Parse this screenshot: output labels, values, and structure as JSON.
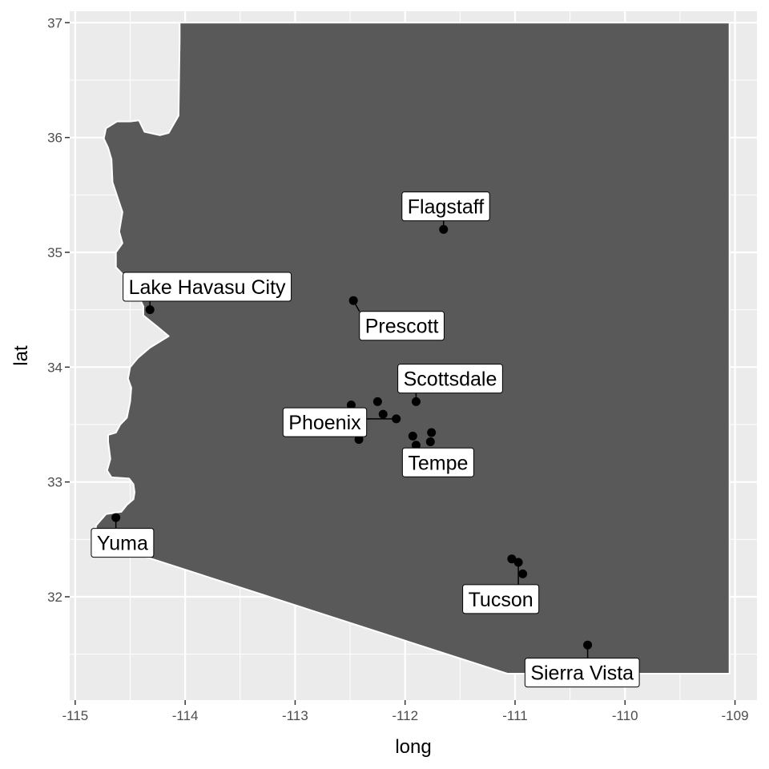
{
  "chart_data": {
    "type": "scatter",
    "title": "",
    "xlabel": "long",
    "ylabel": "lat",
    "xlim": [
      -115.05,
      -108.8
    ],
    "ylim": [
      31.1,
      37.1
    ],
    "x_ticks": [
      "-115",
      "-114",
      "-113",
      "-112",
      "-111",
      "-110",
      "-109"
    ],
    "y_ticks": [
      "32",
      "33",
      "34",
      "35",
      "36",
      "37"
    ],
    "grid": true,
    "legend": "none",
    "colors": {
      "panel": "#ebebeb",
      "grid": "#ffffff",
      "state_fill": "#595959",
      "state_border": "#ffffff",
      "point": "#000000",
      "label_fill": "#ffffff",
      "label_border": "#000000"
    },
    "state_outline": [
      [
        -114.05,
        37.0
      ],
      [
        -109.05,
        37.0
      ],
      [
        -109.05,
        31.33
      ],
      [
        -110.0,
        31.33
      ],
      [
        -111.07,
        31.33
      ],
      [
        -114.82,
        32.49
      ],
      [
        -114.81,
        32.62
      ],
      [
        -114.72,
        32.72
      ],
      [
        -114.58,
        32.74
      ],
      [
        -114.53,
        32.8
      ],
      [
        -114.47,
        32.85
      ],
      [
        -114.46,
        32.91
      ],
      [
        -114.47,
        32.98
      ],
      [
        -114.51,
        33.03
      ],
      [
        -114.67,
        33.04
      ],
      [
        -114.71,
        33.1
      ],
      [
        -114.68,
        33.2
      ],
      [
        -114.7,
        33.35
      ],
      [
        -114.7,
        33.41
      ],
      [
        -114.63,
        33.43
      ],
      [
        -114.59,
        33.5
      ],
      [
        -114.53,
        33.56
      ],
      [
        -114.5,
        33.7
      ],
      [
        -114.49,
        33.82
      ],
      [
        -114.52,
        33.9
      ],
      [
        -114.5,
        34.0
      ],
      [
        -114.43,
        34.08
      ],
      [
        -114.32,
        34.17
      ],
      [
        -114.15,
        34.27
      ],
      [
        -114.25,
        34.35
      ],
      [
        -114.38,
        34.45
      ],
      [
        -114.38,
        34.53
      ],
      [
        -114.47,
        34.71
      ],
      [
        -114.63,
        34.87
      ],
      [
        -114.63,
        35.0
      ],
      [
        -114.57,
        35.08
      ],
      [
        -114.6,
        35.18
      ],
      [
        -114.57,
        35.35
      ],
      [
        -114.66,
        35.61
      ],
      [
        -114.67,
        35.81
      ],
      [
        -114.7,
        35.91
      ],
      [
        -114.74,
        35.99
      ],
      [
        -114.72,
        36.08
      ],
      [
        -114.62,
        36.14
      ],
      [
        -114.5,
        36.14
      ],
      [
        -114.42,
        36.15
      ],
      [
        -114.37,
        36.05
      ],
      [
        -114.23,
        36.02
      ],
      [
        -114.15,
        36.04
      ],
      [
        -114.06,
        36.19
      ],
      [
        -114.05,
        36.85
      ]
    ],
    "points": [
      {
        "name": "Flagstaff",
        "x": -111.65,
        "y": 35.2
      },
      {
        "name": "Lake Havasu City",
        "x": -114.32,
        "y": 34.5
      },
      {
        "name": "Prescott",
        "x": -112.47,
        "y": 34.58
      },
      {
        "name": "Scottsdale",
        "x": -111.9,
        "y": 33.7
      },
      {
        "name": "Phoenix",
        "x": -112.08,
        "y": 33.55
      },
      {
        "name": "",
        "x": -112.25,
        "y": 33.7
      },
      {
        "name": "",
        "x": -112.2,
        "y": 33.59
      },
      {
        "name": "",
        "x": -112.49,
        "y": 33.67
      },
      {
        "name": "",
        "x": -112.42,
        "y": 33.37
      },
      {
        "name": "",
        "x": -111.93,
        "y": 33.4
      },
      {
        "name": "Tempe",
        "x": -111.9,
        "y": 33.32
      },
      {
        "name": "",
        "x": -111.76,
        "y": 33.43
      },
      {
        "name": "",
        "x": -111.77,
        "y": 33.35
      },
      {
        "name": "Yuma",
        "x": -114.63,
        "y": 32.69
      },
      {
        "name": "",
        "x": -111.03,
        "y": 32.33
      },
      {
        "name": "Tucson",
        "x": -110.97,
        "y": 32.3
      },
      {
        "name": "",
        "x": -110.93,
        "y": 32.2
      },
      {
        "name": "Sierra Vista",
        "x": -110.34,
        "y": 31.58
      }
    ],
    "labels": [
      {
        "text": "Flagstaff",
        "x": -111.63,
        "y": 35.4
      },
      {
        "text": "Lake Havasu City",
        "x": -113.8,
        "y": 34.7
      },
      {
        "text": "Prescott",
        "x": -112.03,
        "y": 34.36
      },
      {
        "text": "Scottsdale",
        "x": -111.59,
        "y": 33.9
      },
      {
        "text": "Phoenix",
        "x": -112.73,
        "y": 33.52
      },
      {
        "text": "Tempe",
        "x": -111.7,
        "y": 33.17
      },
      {
        "text": "Yuma",
        "x": -114.57,
        "y": 32.47
      },
      {
        "text": "Tucson",
        "x": -111.13,
        "y": 31.98
      },
      {
        "text": "Sierra Vista",
        "x": -110.39,
        "y": 31.34
      }
    ]
  }
}
